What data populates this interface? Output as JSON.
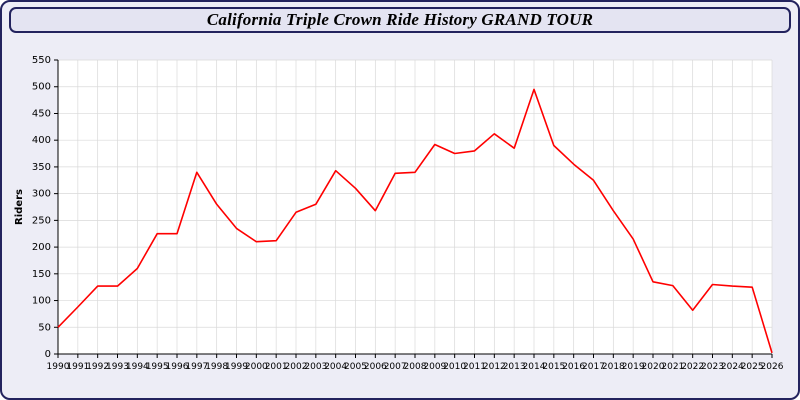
{
  "header": {
    "title": "California Triple Crown Ride History GRAND TOUR"
  },
  "chart_data": {
    "type": "line",
    "title": "California Triple Crown Ride History GRAND TOUR",
    "xlabel": "",
    "ylabel": "Riders",
    "ylim": [
      0,
      550
    ],
    "ytick_step": 50,
    "grid": true,
    "legend_position": "none",
    "line_color": "#ff0000",
    "grid_color": "#d9d9d9",
    "axis_color": "#000000",
    "plot_bg": "#ffffff",
    "x": [
      1990,
      1991,
      1992,
      1993,
      1994,
      1995,
      1996,
      1997,
      1998,
      1999,
      2000,
      2001,
      2002,
      2003,
      2004,
      2005,
      2006,
      2007,
      2008,
      2009,
      2010,
      2011,
      2012,
      2013,
      2014,
      2015,
      2016,
      2017,
      2018,
      2019,
      2020,
      2021,
      2022,
      2023,
      2024,
      2025,
      2026
    ],
    "series": [
      {
        "name": "Riders",
        "values": [
          50,
          88,
          127,
          127,
          160,
          225,
          225,
          340,
          280,
          235,
          210,
          212,
          265,
          280,
          343,
          310,
          268,
          338,
          340,
          392,
          375,
          380,
          412,
          385,
          495,
          390,
          355,
          325,
          268,
          215,
          135,
          128,
          82,
          130,
          127,
          125,
          2
        ]
      }
    ]
  }
}
